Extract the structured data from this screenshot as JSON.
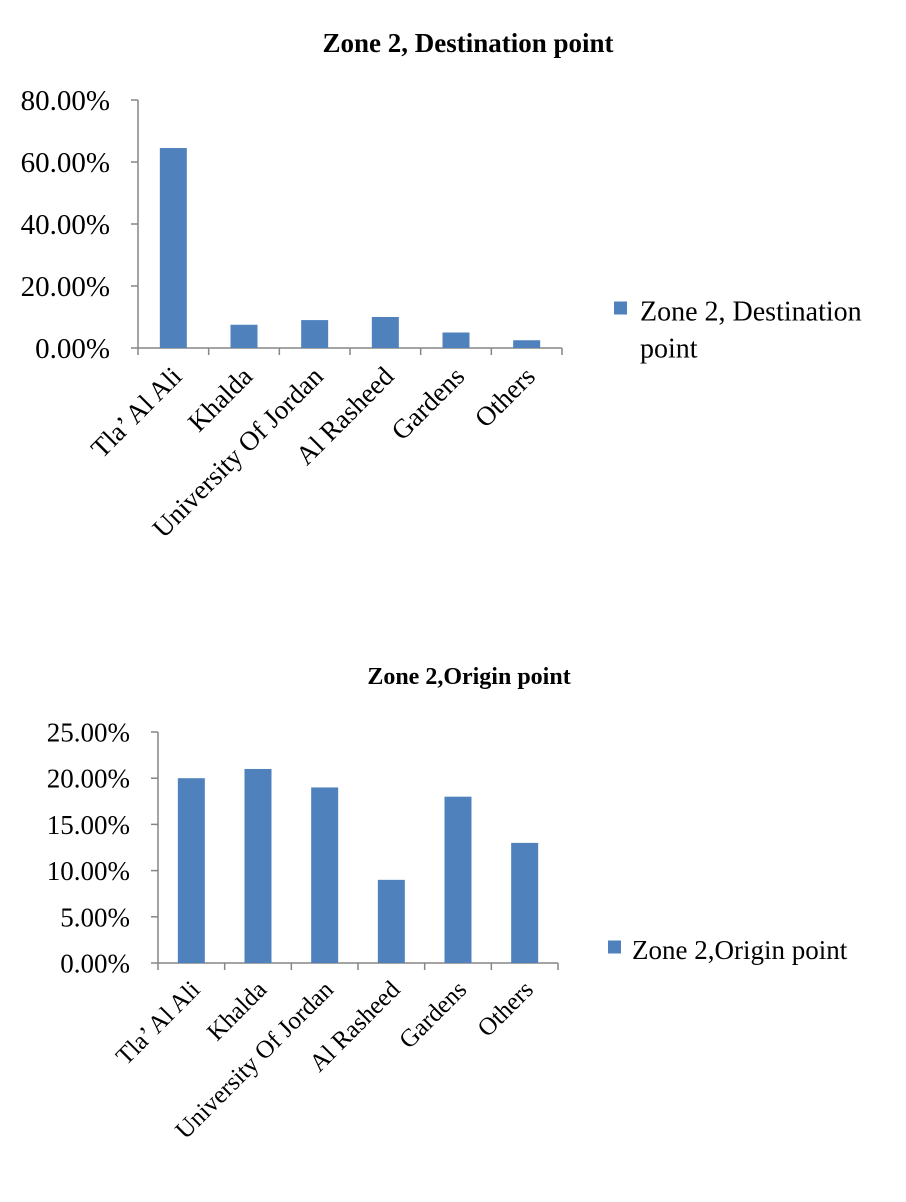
{
  "chart_data": [
    {
      "type": "bar",
      "title": "Zone 2, Destination  point",
      "categories": [
        "Tla’ Al  Ali",
        "Khalda",
        "University Of Jordan",
        "Al Rasheed",
        "Gardens",
        "Others"
      ],
      "series": [
        {
          "name": "Zone 2, Destination point",
          "values": [
            64.5,
            7.5,
            9.0,
            10.0,
            5.0,
            2.5
          ],
          "color": "#4F81BD"
        }
      ],
      "yticks": [
        "0.00%",
        "20.00%",
        "40.00%",
        "60.00%",
        "80.00%"
      ],
      "ylim": [
        0,
        80
      ],
      "xlabel": "",
      "ylabel": "",
      "legend_position": "right",
      "legend_lines": [
        "Zone 2, Destination",
        "point"
      ],
      "grid": false
    },
    {
      "type": "bar",
      "title": "Zone 2,Origin point",
      "categories": [
        "Tla’ Al  Ali",
        "Khalda",
        "University Of Jordan",
        "Al Rasheed",
        "Gardens",
        "Others"
      ],
      "series": [
        {
          "name": "Zone 2,Origin point",
          "values": [
            20.0,
            21.0,
            19.0,
            9.0,
            18.0,
            13.0
          ],
          "color": "#4F81BD"
        }
      ],
      "yticks": [
        "0.00%",
        "5.00%",
        "10.00%",
        "15.00%",
        "20.00%",
        "25.00%"
      ],
      "ylim": [
        0,
        25
      ],
      "xlabel": "",
      "ylabel": "",
      "legend_position": "right",
      "legend_lines": [
        "Zone 2,Origin point"
      ],
      "grid": false
    }
  ]
}
